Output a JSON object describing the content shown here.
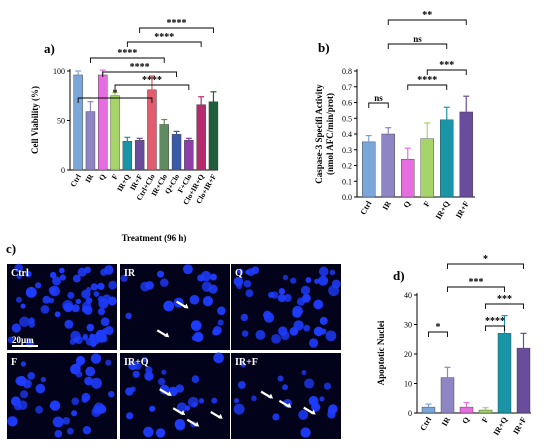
{
  "chart_data": [
    {
      "panel": "a)",
      "type": "bar",
      "ylabel": "Cell Viability (%)",
      "xlabel": "Treatment (96 h)",
      "ylim": [
        0,
        100
      ],
      "yticks": [
        "0",
        "50",
        "100"
      ],
      "categories": [
        "Ctrl",
        "IR",
        "Q",
        "F",
        "IR+Q",
        "IR+F",
        "Ctrl+Clo",
        "IR+Clo",
        "Q+Clo",
        "F+Clo",
        "Clo+IR+Q",
        "Clo+IR+F"
      ],
      "values": [
        96,
        59,
        96,
        75,
        29,
        30,
        81,
        46,
        36,
        30,
        66,
        69
      ],
      "errors": [
        4,
        10,
        5,
        3,
        4,
        2,
        14,
        5,
        3,
        2,
        8,
        10
      ],
      "colors": [
        "#7aa6d9",
        "#8e86c4",
        "#e66de0",
        "#a6d468",
        "#1a95a8",
        "#6a4c9c",
        "#e05c6e",
        "#5e8c5e",
        "#3a5aa8",
        "#8d3fa8",
        "#b82a6e",
        "#1f5e3a"
      ],
      "significance": [
        {
          "from": 0,
          "to": 6,
          "label": "*"
        },
        {
          "from": 3,
          "to": 9,
          "label": "****"
        },
        {
          "from": 2,
          "to": 8,
          "label": "****"
        },
        {
          "from": 1,
          "to": 7,
          "label": "****"
        },
        {
          "from": 4,
          "to": 10,
          "label": "****"
        },
        {
          "from": 5,
          "to": 11,
          "label": "****"
        }
      ]
    },
    {
      "panel": "b)",
      "type": "bar",
      "ylabel_lines": [
        "Caspase-3 Specifi Activity",
        "(nmol  AFC/min/prot)"
      ],
      "ylim": [
        0,
        0.8
      ],
      "yticks": [
        "0.0",
        "0.1",
        "0.2",
        "0.3",
        "0.4",
        "0.5",
        "0.6",
        "0.7",
        "0.8"
      ],
      "categories": [
        "Ctrl",
        "IR",
        "Q",
        "F",
        "IR+Q",
        "IR+F"
      ],
      "values": [
        0.35,
        0.4,
        0.24,
        0.37,
        0.49,
        0.54
      ],
      "errors": [
        0.04,
        0.04,
        0.07,
        0.1,
        0.08,
        0.1
      ],
      "colors": [
        "#7aa6d9",
        "#8e86c4",
        "#e66de0",
        "#a6d468",
        "#1a95a8",
        "#6a4c9c"
      ],
      "significance": [
        {
          "from": 0,
          "to": 1,
          "label": "ns"
        },
        {
          "from": 2,
          "to": 4,
          "label": "****"
        },
        {
          "from": 3,
          "to": 5,
          "label": "***"
        },
        {
          "from": 1,
          "to": 4,
          "label": "ns"
        },
        {
          "from": 1,
          "to": 5,
          "label": "**"
        }
      ]
    },
    {
      "panel": "d)",
      "type": "bar",
      "ylabel": "Apoptotic Nuclei",
      "ylim": [
        0,
        40
      ],
      "yticks": [
        "0",
        "10",
        "20",
        "30",
        "40"
      ],
      "categories": [
        "Ctrl",
        "IR",
        "Q",
        "F",
        "IR+Q",
        "IR+F"
      ],
      "values": [
        2,
        12,
        2,
        1,
        27,
        22
      ],
      "errors": [
        1,
        3.5,
        1.5,
        0.8,
        6,
        5
      ],
      "colors": [
        "#7aa6d9",
        "#8e86c4",
        "#e66de0",
        "#a6d468",
        "#1a95a8",
        "#6a4c9c"
      ],
      "significance": [
        {
          "from": 0,
          "to": 1,
          "label": "*"
        },
        {
          "from": 3,
          "to": 4,
          "label": "****"
        },
        {
          "from": 3,
          "to": 5,
          "label": "***"
        },
        {
          "from": 1,
          "to": 4,
          "label": "***"
        },
        {
          "from": 1,
          "to": 5,
          "label": "*"
        }
      ]
    }
  ],
  "micrographs": {
    "panel_label": "c)",
    "scale_bar": "20µm",
    "tiles": [
      "Ctrl",
      "IR",
      "Q",
      "F",
      "IR+Q",
      "IR+F"
    ],
    "background_color": "#02021a",
    "nucleus_color": "#1e3cff"
  }
}
